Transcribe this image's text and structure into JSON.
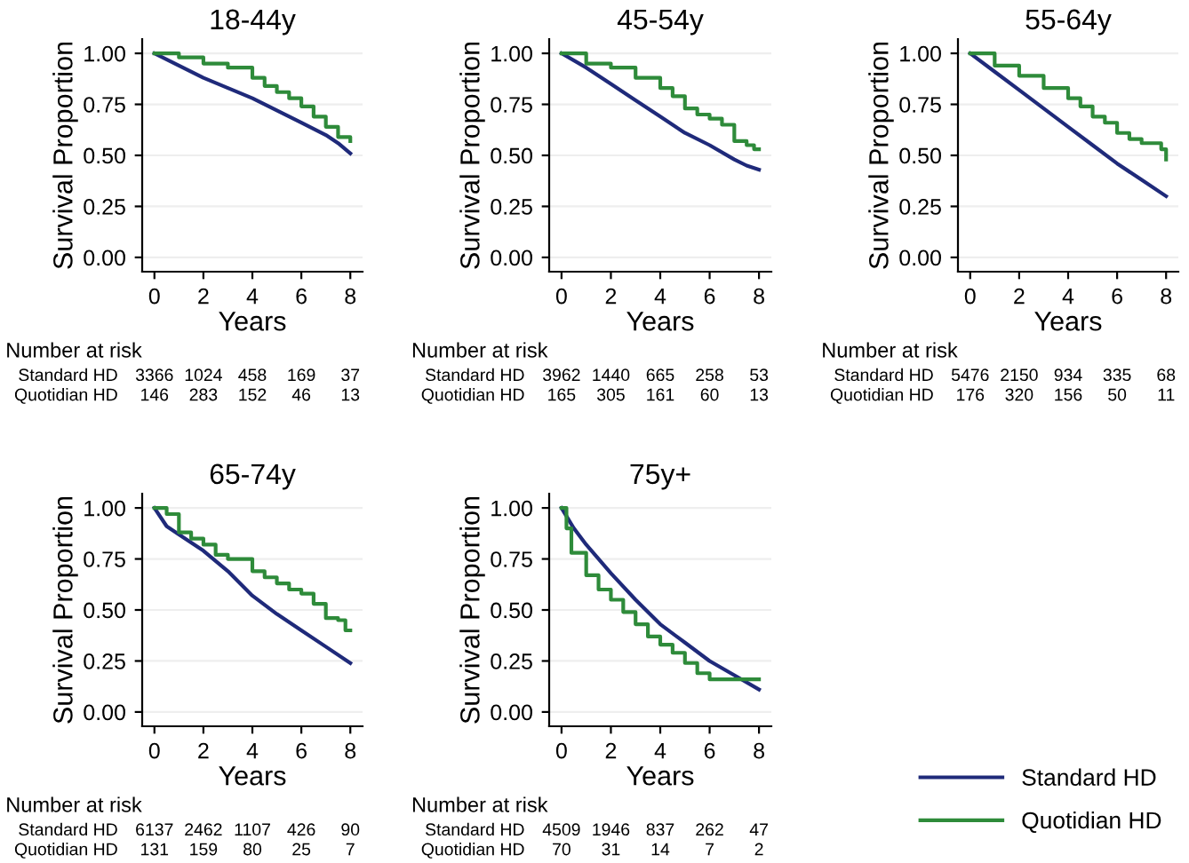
{
  "chart_data": [
    {
      "type": "step",
      "title": "18-44y",
      "xlabel": "Years",
      "ylabel": "Survival Proportion",
      "xlim": [
        -0.5,
        8.5
      ],
      "ylim": [
        -0.07,
        1.07
      ],
      "xticks": [
        0,
        2,
        4,
        6,
        8
      ],
      "yticks": [
        {
          "value": 0,
          "label": "0.00"
        },
        {
          "value": 0.25,
          "label": "0.25"
        },
        {
          "value": 0.5,
          "label": "0.50"
        },
        {
          "value": 0.75,
          "label": "0.75"
        },
        {
          "value": 1,
          "label": "1.00"
        }
      ],
      "grid": "y",
      "series": [
        {
          "type": "line",
          "color": "#1f2a7a",
          "x": [
            0,
            1,
            2,
            3,
            4,
            5,
            6,
            7,
            7.5,
            8
          ],
          "values": [
            1.0,
            0.94,
            0.88,
            0.83,
            0.78,
            0.72,
            0.66,
            0.6,
            0.56,
            0.51
          ]
        },
        {
          "color": "#2e8b3a",
          "x": [
            0,
            1,
            2,
            3,
            4,
            4.5,
            5,
            5.5,
            6,
            6.5,
            7,
            7.5,
            8
          ],
          "values": [
            1.0,
            0.98,
            0.95,
            0.93,
            0.88,
            0.84,
            0.81,
            0.78,
            0.74,
            0.69,
            0.64,
            0.59,
            0.57
          ]
        }
      ],
      "annotations": [
        "Number at risk",
        "Standard HD",
        "3366",
        "1024",
        "458",
        "169",
        "37",
        "Quotidian HD",
        "146",
        "283",
        "152",
        "46",
        "13"
      ]
    },
    {
      "type": "step",
      "title": "45-54y",
      "xlabel": "Years",
      "ylabel": "Survival Proportion",
      "xlim": [
        -0.5,
        8.5
      ],
      "ylim": [
        -0.07,
        1.07
      ],
      "xticks": [
        0,
        2,
        4,
        6,
        8
      ],
      "yticks": [
        {
          "value": 0,
          "label": "0.00"
        },
        {
          "value": 0.25,
          "label": "0.25"
        },
        {
          "value": 0.5,
          "label": "0.50"
        },
        {
          "value": 0.75,
          "label": "0.75"
        },
        {
          "value": 1,
          "label": "1.00"
        }
      ],
      "grid": "y",
      "series": [
        {
          "type": "line",
          "color": "#1f2a7a",
          "x": [
            0,
            1,
            2,
            3,
            4,
            5,
            6,
            7,
            7.5,
            8
          ],
          "values": [
            1.0,
            0.93,
            0.85,
            0.77,
            0.69,
            0.61,
            0.55,
            0.48,
            0.45,
            0.43
          ]
        },
        {
          "color": "#2e8b3a",
          "x": [
            0,
            1,
            2,
            3,
            4,
            4.5,
            5,
            5.5,
            6,
            6.5,
            7,
            7.5,
            7.8,
            8
          ],
          "values": [
            1.0,
            0.95,
            0.93,
            0.88,
            0.83,
            0.79,
            0.73,
            0.7,
            0.68,
            0.65,
            0.57,
            0.55,
            0.53,
            0.53
          ]
        }
      ],
      "annotations": [
        "Number at risk",
        "Standard HD",
        "3962",
        "1440",
        "665",
        "258",
        "53",
        "Quotidian HD",
        "165",
        "305",
        "161",
        "60",
        "13"
      ]
    },
    {
      "type": "step",
      "title": "55-64y",
      "xlabel": "Years",
      "ylabel": "Survival Proportion",
      "xlim": [
        -0.5,
        8.5
      ],
      "ylim": [
        -0.07,
        1.07
      ],
      "xticks": [
        0,
        2,
        4,
        6,
        8
      ],
      "yticks": [
        {
          "value": 0,
          "label": "0.00"
        },
        {
          "value": 0.25,
          "label": "0.25"
        },
        {
          "value": 0.5,
          "label": "0.50"
        },
        {
          "value": 0.75,
          "label": "0.75"
        },
        {
          "value": 1,
          "label": "1.00"
        }
      ],
      "grid": "y",
      "series": [
        {
          "type": "line",
          "color": "#1f2a7a",
          "x": [
            0,
            1,
            2,
            3,
            4,
            5,
            6,
            7,
            8
          ],
          "values": [
            1.0,
            0.91,
            0.82,
            0.73,
            0.64,
            0.55,
            0.46,
            0.38,
            0.3
          ]
        },
        {
          "color": "#2e8b3a",
          "x": [
            0,
            1,
            2,
            3,
            4,
            4.5,
            5,
            5.5,
            6,
            6.5,
            7,
            7.5,
            7.8,
            8
          ],
          "values": [
            1.0,
            0.94,
            0.89,
            0.83,
            0.78,
            0.74,
            0.69,
            0.66,
            0.61,
            0.58,
            0.56,
            0.56,
            0.53,
            0.48
          ]
        }
      ],
      "annotations": [
        "Number at risk",
        "Standard HD",
        "5476",
        "2150",
        "934",
        "335",
        "68",
        "Quotidian HD",
        "176",
        "320",
        "156",
        "50",
        "11"
      ]
    },
    {
      "type": "step",
      "title": "65-74y",
      "xlabel": "Years",
      "ylabel": "Survival Proportion",
      "xlim": [
        -0.5,
        8.5
      ],
      "ylim": [
        -0.07,
        1.07
      ],
      "xticks": [
        0,
        2,
        4,
        6,
        8
      ],
      "yticks": [
        {
          "value": 0,
          "label": "0.00"
        },
        {
          "value": 0.25,
          "label": "0.25"
        },
        {
          "value": 0.5,
          "label": "0.50"
        },
        {
          "value": 0.75,
          "label": "0.75"
        },
        {
          "value": 1,
          "label": "1.00"
        }
      ],
      "grid": "y",
      "series": [
        {
          "type": "line",
          "color": "#1f2a7a",
          "x": [
            0,
            0.5,
            1,
            2,
            3,
            4,
            5,
            6,
            7,
            8
          ],
          "values": [
            1.0,
            0.91,
            0.87,
            0.79,
            0.69,
            0.57,
            0.48,
            0.4,
            0.32,
            0.24
          ]
        },
        {
          "color": "#2e8b3a",
          "x": [
            0,
            0.5,
            1,
            1.5,
            2,
            2.5,
            3,
            4,
            4.5,
            5,
            5.5,
            6,
            6.5,
            7,
            7.5,
            7.8,
            8
          ],
          "values": [
            1.0,
            0.97,
            0.88,
            0.85,
            0.82,
            0.77,
            0.75,
            0.69,
            0.66,
            0.63,
            0.6,
            0.58,
            0.53,
            0.46,
            0.45,
            0.4,
            0.4
          ]
        }
      ],
      "annotations": [
        "Number at risk",
        "Standard HD",
        "6137",
        "2462",
        "1107",
        "426",
        "90",
        "Quotidian HD",
        "131",
        "159",
        "80",
        "25",
        "7"
      ]
    },
    {
      "type": "step",
      "title": "75y+",
      "xlabel": "Years",
      "ylabel": "Survival Proportion",
      "xlim": [
        -0.5,
        8.5
      ],
      "ylim": [
        -0.07,
        1.07
      ],
      "xticks": [
        0,
        2,
        4,
        6,
        8
      ],
      "yticks": [
        {
          "value": 0,
          "label": "0.00"
        },
        {
          "value": 0.25,
          "label": "0.25"
        },
        {
          "value": 0.5,
          "label": "0.50"
        },
        {
          "value": 0.75,
          "label": "0.75"
        },
        {
          "value": 1,
          "label": "1.00"
        }
      ],
      "grid": "y",
      "legend": "bottom right",
      "series": [
        {
          "type": "line",
          "name": "Standard HD",
          "color": "#1f2a7a",
          "x": [
            0,
            0.5,
            1,
            2,
            3,
            4,
            5,
            6,
            7,
            8
          ],
          "values": [
            1.0,
            0.9,
            0.82,
            0.68,
            0.55,
            0.43,
            0.34,
            0.25,
            0.18,
            0.11
          ]
        },
        {
          "name": "Quotidian HD",
          "color": "#2e8b3a",
          "x": [
            0,
            0.2,
            0.4,
            1,
            1.5,
            2,
            2.5,
            3,
            3.5,
            4,
            4.5,
            5,
            5.5,
            6,
            7,
            8
          ],
          "values": [
            1.0,
            0.9,
            0.78,
            0.67,
            0.6,
            0.55,
            0.49,
            0.43,
            0.37,
            0.33,
            0.29,
            0.24,
            0.19,
            0.16,
            0.16,
            0.16
          ]
        }
      ],
      "annotations": [
        "Number at risk",
        "Standard HD",
        "4509",
        "1946",
        "837",
        "262",
        "47",
        "Quotidian HD",
        "70",
        "31",
        "14",
        "7",
        "2"
      ]
    }
  ]
}
